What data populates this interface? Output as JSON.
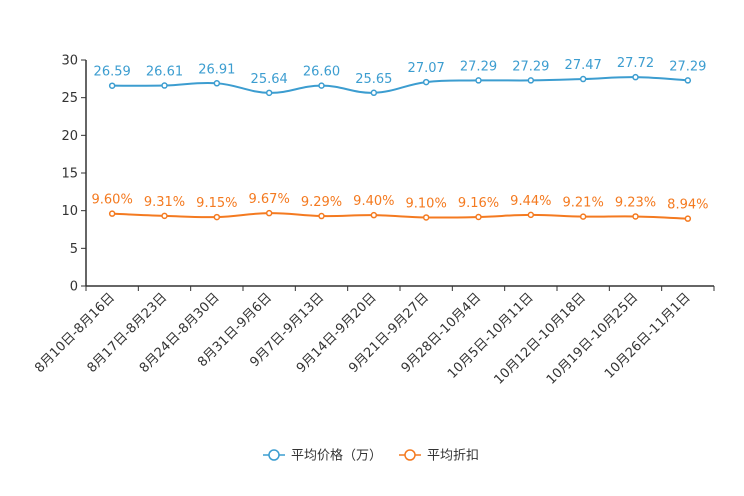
{
  "chart_data": {
    "type": "line",
    "title": "",
    "xlabel": "",
    "ylabel": "",
    "ylim": [
      0,
      30
    ],
    "yticks": [
      0,
      5,
      10,
      15,
      20,
      25,
      30
    ],
    "grid": false,
    "legend_position": "bottom-center",
    "categories": [
      "8月10日-8月16日",
      "8月17日-8月23日",
      "8月24日-8月30日",
      "8月31日-9月6日",
      "9月7日-9月13日",
      "9月14日-9月20日",
      "9月21日-9月27日",
      "9月28日-10月4日",
      "10月5日-10月11日",
      "10月12日-10月18日",
      "10月19日-10月25日",
      "10月26日-11月1日"
    ],
    "series": [
      {
        "name": "平均价格（万）",
        "color": "#3c9dd0",
        "values": [
          26.59,
          26.61,
          26.91,
          25.64,
          26.6,
          25.65,
          27.07,
          27.29,
          27.29,
          27.47,
          27.72,
          27.29
        ],
        "labels": [
          "26.59",
          "26.61",
          "26.91",
          "25.64",
          "26.60",
          "25.65",
          "27.07",
          "27.29",
          "27.29",
          "27.47",
          "27.72",
          "27.29"
        ]
      },
      {
        "name": "平均折扣",
        "color": "#f47a20",
        "values": [
          9.6,
          9.31,
          9.15,
          9.67,
          9.29,
          9.4,
          9.1,
          9.16,
          9.44,
          9.21,
          9.23,
          8.94
        ],
        "labels": [
          "9.60%",
          "9.31%",
          "9.15%",
          "9.67%",
          "9.29%",
          "9.40%",
          "9.10%",
          "9.16%",
          "9.44%",
          "9.21%",
          "9.23%",
          "8.94%"
        ]
      }
    ]
  }
}
